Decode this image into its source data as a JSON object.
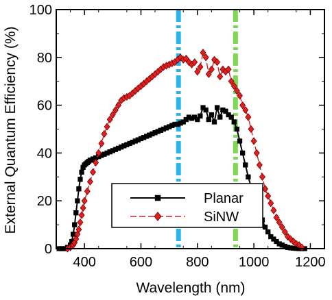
{
  "chart_data": {
    "type": "line",
    "xlabel": "Wavelength (nm)",
    "ylabel": "External Quantum Efficiency (%)",
    "xlim": [
      300,
      1250
    ],
    "ylim": [
      0,
      100
    ],
    "xticks": [
      400,
      600,
      800,
      1000,
      1200
    ],
    "yticks": [
      0,
      20,
      40,
      60,
      80,
      100
    ],
    "grid": false,
    "legend_position": "lower-center",
    "vertical_markers": [
      {
        "x": 733,
        "color": "#2ab4ea"
      },
      {
        "x": 935,
        "color": "#7ed957"
      }
    ],
    "series": [
      {
        "name": "Planar",
        "color": "#000000",
        "marker": "square",
        "dash": "solid",
        "x": [
          310,
          320,
          330,
          340,
          350,
          355,
          360,
          365,
          370,
          375,
          380,
          385,
          390,
          395,
          400,
          405,
          410,
          415,
          420,
          425,
          430,
          440,
          450,
          460,
          470,
          480,
          490,
          500,
          510,
          520,
          530,
          540,
          550,
          560,
          570,
          580,
          590,
          600,
          610,
          620,
          630,
          640,
          650,
          660,
          670,
          680,
          690,
          700,
          710,
          720,
          730,
          740,
          750,
          760,
          770,
          780,
          790,
          800,
          810,
          820,
          830,
          840,
          850,
          860,
          870,
          880,
          890,
          900,
          910,
          920,
          930,
          940,
          950,
          960,
          970,
          980,
          990,
          1000,
          1010,
          1020,
          1030,
          1040,
          1050,
          1060,
          1070,
          1080,
          1090,
          1100,
          1110,
          1120,
          1130,
          1140,
          1150,
          1160,
          1170,
          1180
        ],
        "values": [
          0,
          0,
          0,
          0.5,
          1.5,
          3,
          6,
          10,
          15,
          20,
          25,
          29,
          32,
          34,
          35,
          35.5,
          36,
          36.5,
          37,
          37,
          37.5,
          38,
          38.5,
          39,
          39.5,
          40,
          40.5,
          41,
          41.5,
          42,
          42.5,
          43,
          43.5,
          44,
          44.5,
          45,
          45.5,
          46,
          46.5,
          47,
          47.5,
          48,
          48.5,
          49,
          49.5,
          50,
          50.5,
          51,
          51.5,
          52,
          52,
          52.5,
          53,
          54,
          55,
          54.5,
          55,
          54,
          55.5,
          59,
          58,
          54,
          56,
          53,
          59,
          55,
          58,
          57.5,
          56,
          55,
          53,
          50,
          45,
          40,
          35,
          30,
          26,
          22,
          18,
          15,
          12,
          9,
          7,
          5,
          4,
          3,
          2,
          1.5,
          1,
          0.5,
          0.3,
          0.2,
          0.1,
          0,
          0,
          0
        ],
        "errorbar_x": [],
        "errorbar": []
      },
      {
        "name": "SiNW",
        "color": "#d42020",
        "marker_fill": "#e02020",
        "marker": "diamond",
        "dash": "dashed",
        "x": [
          340,
          350,
          360,
          365,
          370,
          375,
          380,
          385,
          390,
          395,
          400,
          410,
          420,
          430,
          440,
          450,
          460,
          470,
          480,
          490,
          500,
          510,
          520,
          530,
          540,
          550,
          560,
          570,
          580,
          590,
          600,
          610,
          620,
          630,
          640,
          650,
          660,
          670,
          680,
          690,
          700,
          710,
          720,
          730,
          740,
          750,
          760,
          770,
          780,
          790,
          800,
          810,
          820,
          830,
          840,
          850,
          860,
          870,
          880,
          890,
          900,
          910,
          920,
          930,
          940,
          950,
          960,
          970,
          980,
          990,
          1000,
          1010,
          1020,
          1030,
          1040,
          1050,
          1060,
          1070,
          1080,
          1090,
          1100,
          1110,
          1120,
          1130,
          1140,
          1150,
          1160,
          1170
        ],
        "values": [
          0,
          0.5,
          1.5,
          2.5,
          4,
          6,
          8,
          11,
          14,
          17,
          20,
          24,
          28,
          32,
          36,
          40,
          44,
          48,
          51,
          54,
          56,
          58,
          60,
          62,
          63,
          63.5,
          64,
          65,
          66,
          67,
          68,
          69,
          70,
          71,
          72,
          73,
          74,
          75,
          76,
          76.5,
          77,
          77.5,
          78,
          79,
          80,
          79,
          79.5,
          78,
          77,
          78,
          74,
          76,
          82,
          80,
          73,
          75,
          79,
          78,
          72,
          75,
          74,
          75,
          70,
          68,
          66,
          64,
          60,
          58,
          55,
          50,
          45,
          40,
          35,
          30,
          25,
          22,
          19,
          16,
          13,
          11,
          9,
          7,
          5,
          4,
          3,
          2,
          1.5,
          0.5
        ],
        "errorbar": []
      }
    ]
  }
}
